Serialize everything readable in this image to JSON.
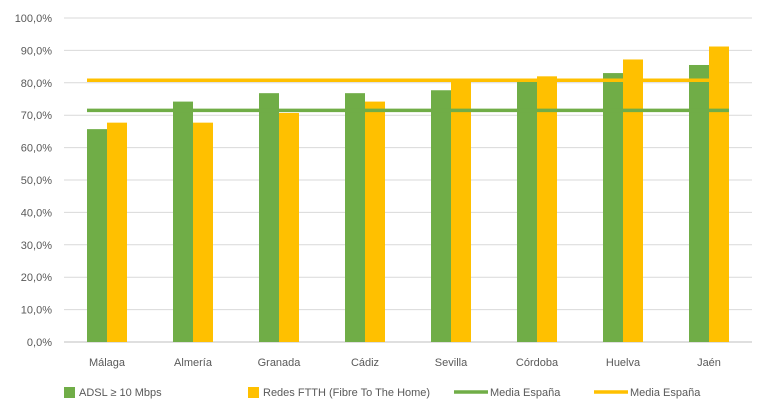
{
  "chart_data": {
    "type": "bar",
    "title": "",
    "xlabel": "",
    "ylabel": "",
    "categories": [
      "Málaga",
      "Almería",
      "Granada",
      "Cádiz",
      "Sevilla",
      "Córdoba",
      "Huelva",
      "Jaén"
    ],
    "series": [
      {
        "name": "ADSL ≥ 10 Mbps",
        "color": "#70AD47",
        "values": [
          65.7,
          74.2,
          76.8,
          76.8,
          77.7,
          80.3,
          83.0,
          85.5
        ]
      },
      {
        "name": "Redes FTTH (Fibre To The Home)",
        "color": "#FFC000",
        "values": [
          67.7,
          67.7,
          70.7,
          74.2,
          80.3,
          82.0,
          87.2,
          91.2
        ]
      }
    ],
    "reference_lines": [
      {
        "name": "Media España",
        "color": "#70AD47",
        "value": 71.5
      },
      {
        "name": "Media España",
        "color": "#FFC000",
        "value": 80.8
      }
    ],
    "ylim": [
      0,
      100
    ],
    "yticks": [
      "0,0%",
      "10,0%",
      "20,0%",
      "30,0%",
      "40,0%",
      "50,0%",
      "60,0%",
      "70,0%",
      "80,0%",
      "90,0%",
      "100,0%"
    ],
    "grid": true,
    "legend_position": "bottom"
  }
}
